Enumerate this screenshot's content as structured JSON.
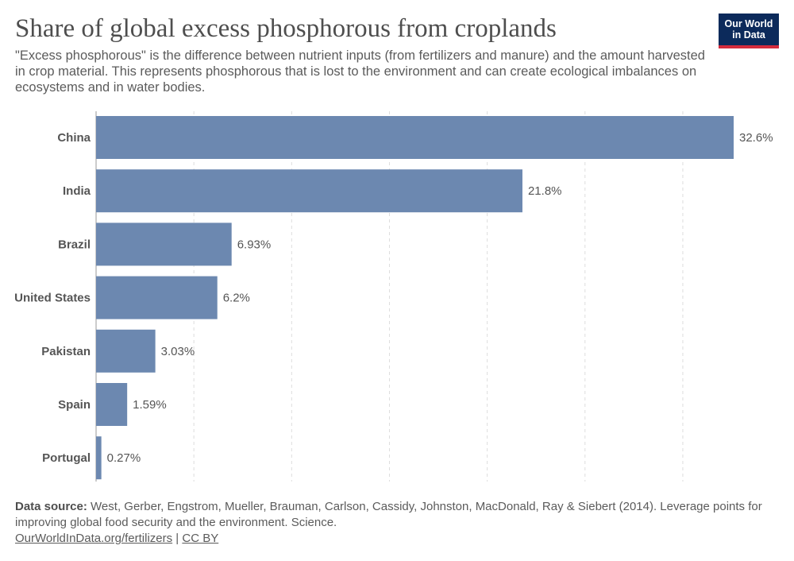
{
  "header": {
    "title": "Share of global excess phosphorous from croplands",
    "subtitle": "\"Excess phosphorous\" is the difference between nutrient inputs (from fertilizers and manure) and the amount harvested in crop material. This represents phosphorous that is lost to the environment and can create ecological imbalances on ecosystems and in water bodies.",
    "logo_line1": "Our World",
    "logo_line2": "in Data"
  },
  "colors": {
    "bar": "#6c88b0",
    "grid": "#dddddd",
    "logo_bg": "#0c2a5b",
    "logo_accent": "#d42b3c"
  },
  "chart_data": {
    "type": "bar",
    "orientation": "horizontal",
    "categories": [
      "China",
      "India",
      "Brazil",
      "United States",
      "Pakistan",
      "Spain",
      "Portugal"
    ],
    "values": [
      32.6,
      21.8,
      6.93,
      6.2,
      3.03,
      1.59,
      0.27
    ],
    "value_labels": [
      "32.6%",
      "21.8%",
      "6.93%",
      "6.2%",
      "3.03%",
      "1.59%",
      "0.27%"
    ],
    "xlim": [
      0,
      32.6
    ],
    "grid_values": [
      5,
      10,
      15,
      20,
      25,
      30
    ],
    "grid": true,
    "legend": "none"
  },
  "footer": {
    "source_label": "Data source:",
    "source_text": "West, Gerber, Engstrom, Mueller, Brauman, Carlson, Cassidy, Johnston, MacDonald, Ray & Siebert (2014). Leverage points for improving global food security and the environment. Science.",
    "link1": "OurWorldInData.org/fertilizers",
    "separator": "|",
    "link2": "CC BY"
  }
}
